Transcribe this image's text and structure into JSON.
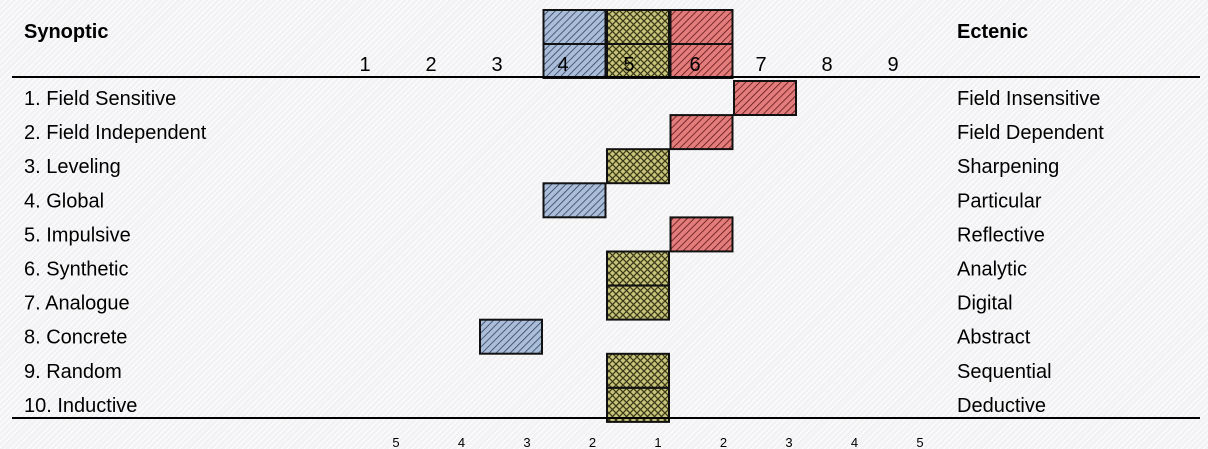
{
  "chart_data": {
    "type": "heatmap",
    "left_header": "Synoptic",
    "right_header": "Ectenic",
    "scale_ticks": [
      "1",
      "2",
      "3",
      "4",
      "5",
      "6",
      "7",
      "8",
      "9"
    ],
    "distance_ticks": [
      "5",
      "4",
      "3",
      "2",
      "1",
      "2",
      "3",
      "4",
      "5"
    ],
    "legend_levels": [
      4,
      5,
      6
    ],
    "rows": [
      {
        "left": "1. Field Sensitive",
        "right": "Field Insensitive",
        "value": 7
      },
      {
        "left": "2. Field Independent",
        "right": "Field Dependent",
        "value": 6
      },
      {
        "left": "3. Leveling",
        "right": "Sharpening",
        "value": 5
      },
      {
        "left": "4. Global",
        "right": "Particular",
        "value": 4
      },
      {
        "left": "5. Impulsive",
        "right": "Reflective",
        "value": 6
      },
      {
        "left": "6. Synthetic",
        "right": "Analytic",
        "value": 5
      },
      {
        "left": "7. Analogue",
        "right": "Digital",
        "value": 5
      },
      {
        "left": "8. Concrete",
        "right": "Abstract",
        "value": 3
      },
      {
        "left": "9. Random",
        "right": "Sequential",
        "value": 5
      },
      {
        "left": "10. Inductive",
        "right": "Deductive",
        "value": 5
      }
    ],
    "colors": {
      "synoptic": "#a9bcd9",
      "neutral": "#c5c27a",
      "ectenic": "#e37b7b"
    }
  }
}
